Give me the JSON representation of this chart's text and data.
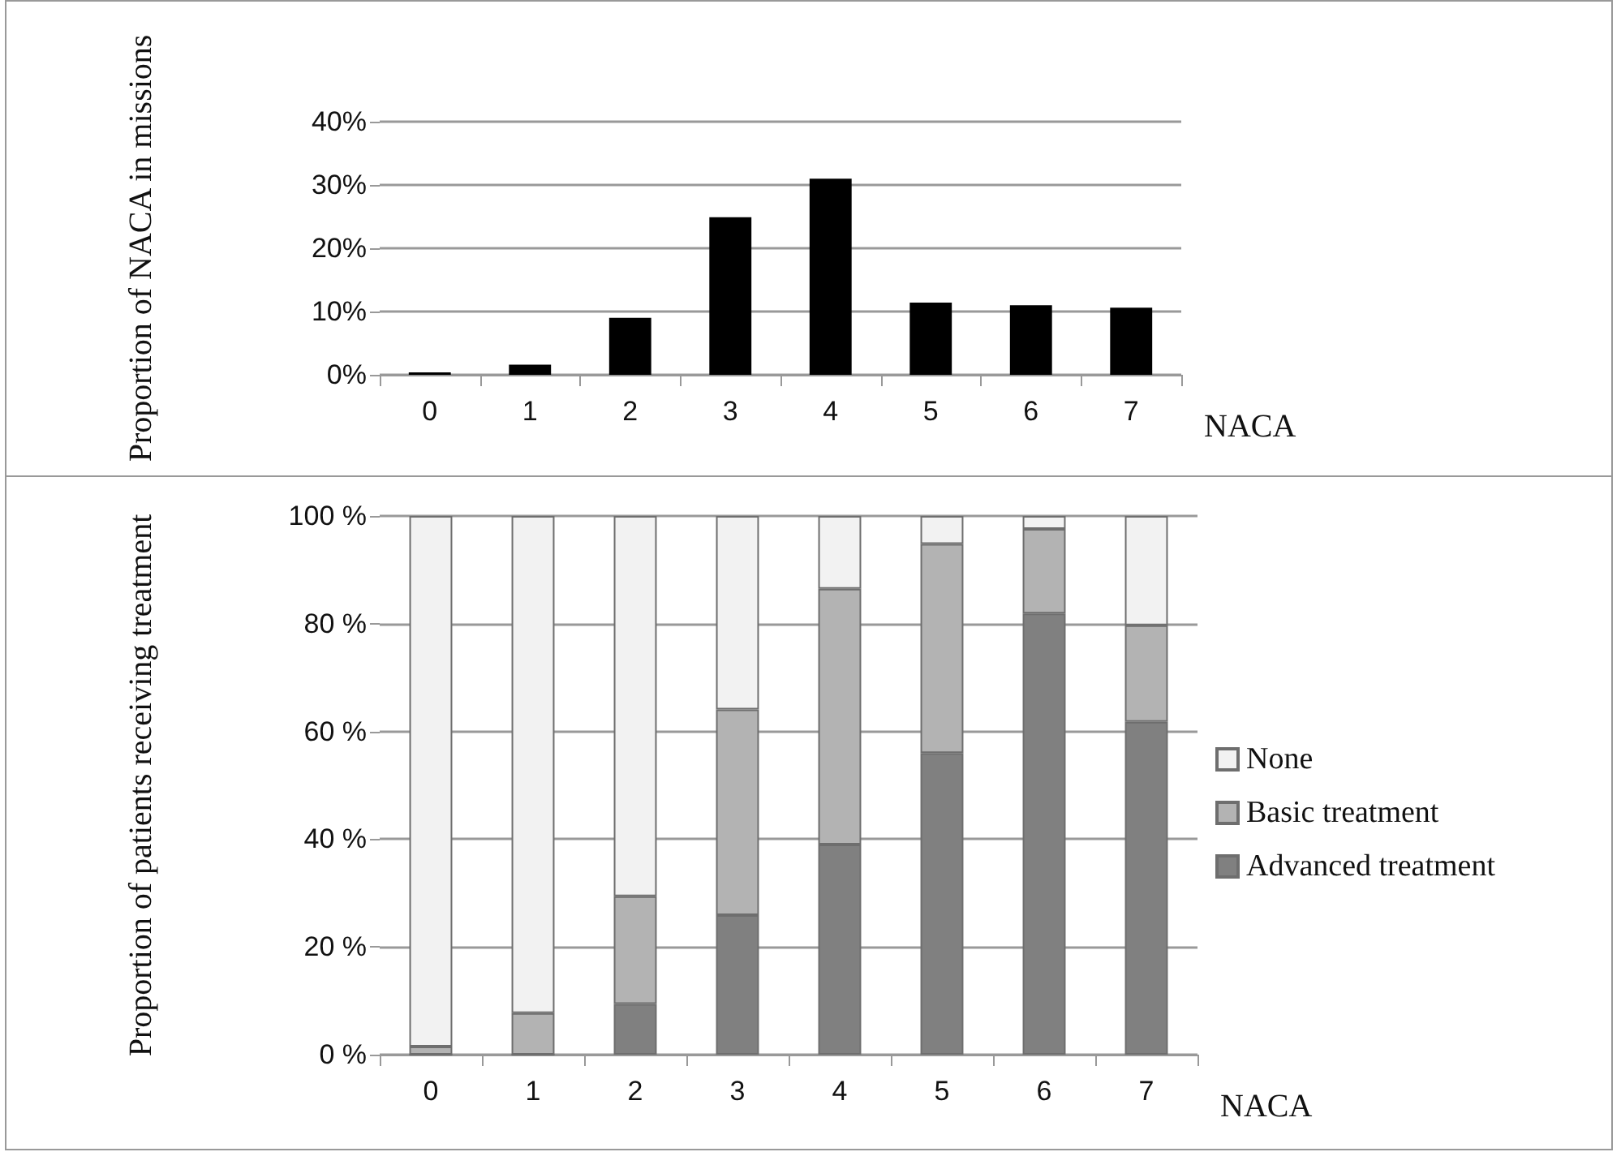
{
  "chart_data": [
    {
      "type": "bar",
      "ylabel": "Proportion of NACA in missions",
      "xlabel": "NACA",
      "categories": [
        "0",
        "1",
        "2",
        "3",
        "4",
        "5",
        "6",
        "7"
      ],
      "values": [
        0.4,
        1.6,
        9.0,
        24.9,
        31.0,
        11.4,
        11.0,
        10.6
      ],
      "color": "#000000",
      "ylim": [
        0,
        40
      ],
      "yticks": [
        {
          "value": 0,
          "label": "0%"
        },
        {
          "value": 10,
          "label": "10%"
        },
        {
          "value": 20,
          "label": "20%"
        },
        {
          "value": 30,
          "label": "30%"
        },
        {
          "value": 40,
          "label": "40%"
        }
      ],
      "grid": "y",
      "legend": false
    },
    {
      "type": "bar",
      "ylabel": "Proportion of patients receiving treatment",
      "xlabel": "NACA",
      "stacked": true,
      "categories": [
        "0",
        "1",
        "2",
        "3",
        "4",
        "5",
        "6",
        "7"
      ],
      "series": [
        {
          "name": "Advanced treatment",
          "color": "#808080",
          "values": [
            0,
            0,
            9.4,
            25.9,
            39.0,
            56.0,
            81.9,
            61.8
          ]
        },
        {
          "name": "Basic treatment",
          "color": "#b3b3b3",
          "values": [
            1.5,
            7.7,
            20.0,
            38.2,
            47.5,
            38.8,
            15.7,
            17.9
          ]
        },
        {
          "name": "None",
          "color": "#f2f2f2",
          "values": [
            98.5,
            92.3,
            70.6,
            35.9,
            13.5,
            5.2,
            2.4,
            20.3
          ]
        }
      ],
      "ylim": [
        0,
        100
      ],
      "yticks": [
        {
          "value": 0,
          "label": "0 %"
        },
        {
          "value": 20,
          "label": "20 %"
        },
        {
          "value": 40,
          "label": "40 %"
        },
        {
          "value": 60,
          "label": "60 %"
        },
        {
          "value": 80,
          "label": "80 %"
        },
        {
          "value": 100,
          "label": "100 %"
        }
      ],
      "grid": "y",
      "legend": "right"
    }
  ]
}
